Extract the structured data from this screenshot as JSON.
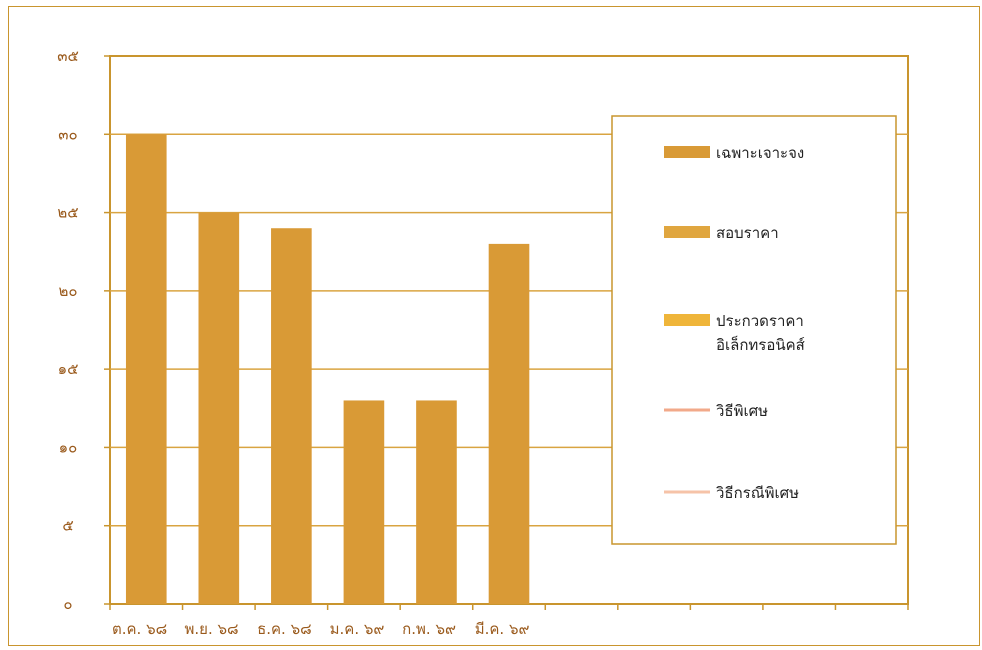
{
  "chart_data": {
    "type": "bar",
    "title": "",
    "xlabel": "",
    "ylabel": "",
    "categories": [
      "ต.ค. ๖๘",
      "พ.ย. ๖๘",
      "ธ.ค. ๖๘",
      "ม.ค. ๖๙",
      "ก.พ. ๖๙",
      "มี.ค. ๖๙"
    ],
    "series": [
      {
        "name": "เฉพาะเจาะจง",
        "values": [
          30,
          25,
          24,
          13,
          13,
          23
        ],
        "color": "#d99a36"
      },
      {
        "name": "สอบราคา",
        "values": [
          0,
          0,
          0,
          0,
          0,
          0
        ],
        "color": "#e0a63f"
      },
      {
        "name": "ประกวดราคา\nอิเล็กทรอนิคส์",
        "values": [
          0,
          0,
          0,
          0,
          0,
          0
        ],
        "color": "#efb53a"
      },
      {
        "name": "วิธีพิเศษ",
        "values": [
          0,
          0,
          0,
          0,
          0,
          0
        ],
        "color": "#f2a98a"
      },
      {
        "name": "วิธีกรณีพิเศษ",
        "values": [
          0,
          0,
          0,
          0,
          0,
          0
        ],
        "color": "#f6c3a8"
      }
    ],
    "ylim": [
      0,
      35
    ],
    "yticks": [
      "๐",
      "๕",
      "๑๐",
      "๑๕",
      "๒๐",
      "๒๕",
      "๓๐",
      "๓๕"
    ],
    "x_slots": 11,
    "grid": true,
    "legend_position": "right",
    "colors": {
      "axis": "#c9952e",
      "grid": "#d9a441",
      "tick_text": "#9a5a1c"
    }
  }
}
